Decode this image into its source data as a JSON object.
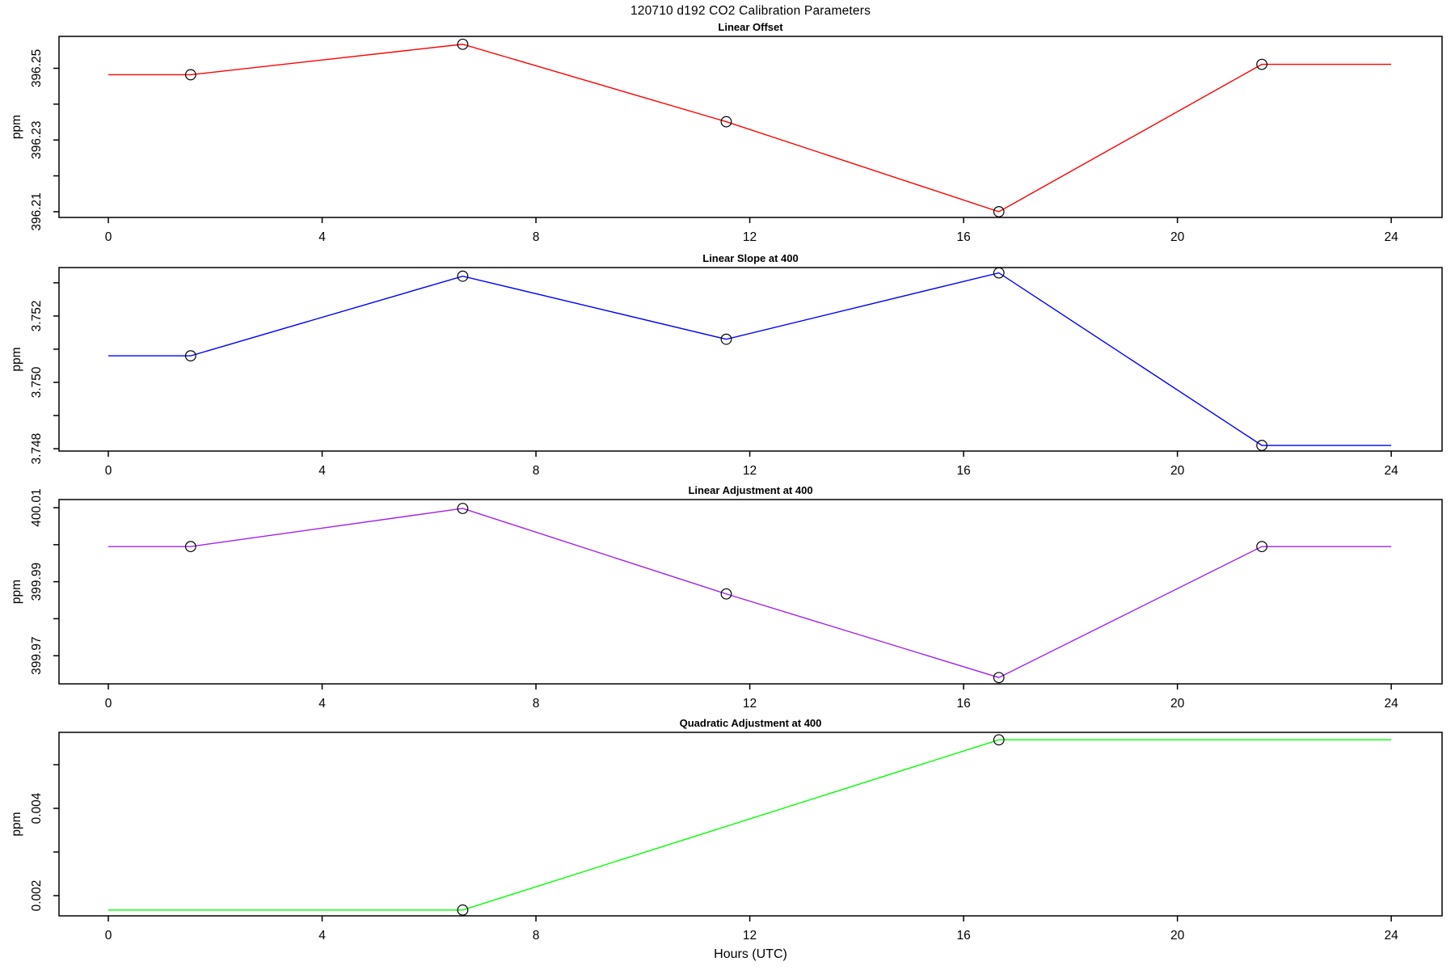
{
  "title": "120710   d192   CO2 Calibration Parameters",
  "x_axis": {
    "label": "Hours (UTC)",
    "ticks": [
      0,
      4,
      8,
      12,
      16,
      20,
      24
    ],
    "lim": [
      -0.96,
      24.96
    ]
  },
  "colors": {
    "linear_offset": "#ff0000",
    "linear_slope": "#0000ff",
    "linear_adjustment": "#a020f0",
    "quadratic_adjustment": "#00ff00",
    "axis": "#000000",
    "background": "#ffffff"
  },
  "chart_data": [
    {
      "type": "line",
      "title": "Linear Offset",
      "ylabel": "ppm",
      "color": "#ff0000",
      "ylim": [
        396.2084,
        396.2589
      ],
      "yticks": [
        {
          "v": 396.21,
          "label": "396.21"
        },
        {
          "v": 396.22,
          "label": ""
        },
        {
          "v": 396.23,
          "label": "396.23"
        },
        {
          "v": 396.24,
          "label": ""
        },
        {
          "v": 396.25,
          "label": "396.25"
        }
      ],
      "line": [
        [
          0,
          396.2482
        ],
        [
          1.54,
          396.2482
        ],
        [
          6.63,
          396.2567
        ],
        [
          11.56,
          396.2351
        ],
        [
          16.66,
          396.21
        ],
        [
          21.58,
          396.2511
        ],
        [
          24,
          396.2511
        ]
      ],
      "markers": [
        [
          1.54,
          396.2482
        ],
        [
          6.63,
          396.2567
        ],
        [
          11.56,
          396.2351
        ],
        [
          16.66,
          396.21
        ],
        [
          21.58,
          396.2511
        ]
      ]
    },
    {
      "type": "line",
      "title": "Linear Slope at 400",
      "ylabel": "ppm",
      "color": "#0000ff",
      "ylim": [
        3.74793,
        3.75346
      ],
      "yticks": [
        {
          "v": 3.748,
          "label": "3.748"
        },
        {
          "v": 3.749,
          "label": ""
        },
        {
          "v": 3.75,
          "label": "3.750"
        },
        {
          "v": 3.751,
          "label": ""
        },
        {
          "v": 3.752,
          "label": "3.752"
        },
        {
          "v": 3.753,
          "label": ""
        }
      ],
      "line": [
        [
          0,
          3.7508
        ],
        [
          1.54,
          3.7508
        ],
        [
          6.63,
          3.7532
        ],
        [
          11.56,
          3.7513
        ],
        [
          16.66,
          3.7533
        ],
        [
          21.58,
          3.7481
        ],
        [
          24,
          3.7481
        ]
      ],
      "markers": [
        [
          1.54,
          3.7508
        ],
        [
          6.63,
          3.7532
        ],
        [
          11.56,
          3.7513
        ],
        [
          16.66,
          3.7533
        ],
        [
          21.58,
          3.7481
        ]
      ]
    },
    {
      "type": "line",
      "title": "Linear Adjustment at 400",
      "ylabel": "ppm",
      "color": "#a020f0",
      "ylim": [
        399.9624,
        400.0122
      ],
      "yticks": [
        {
          "v": 399.97,
          "label": "399.97"
        },
        {
          "v": 399.98,
          "label": ""
        },
        {
          "v": 399.99,
          "label": "399.99"
        },
        {
          "v": 400.0,
          "label": ""
        },
        {
          "v": 400.01,
          "label": "400.01"
        }
      ],
      "line": [
        [
          0,
          399.9995
        ],
        [
          1.54,
          399.9995
        ],
        [
          6.63,
          400.0098
        ],
        [
          11.56,
          399.9867
        ],
        [
          16.66,
          399.9641
        ],
        [
          21.58,
          399.9995
        ],
        [
          24,
          399.9995
        ]
      ],
      "markers": [
        [
          1.54,
          399.9995
        ],
        [
          6.63,
          400.0098
        ],
        [
          11.56,
          399.9867
        ],
        [
          16.66,
          399.9641
        ],
        [
          21.58,
          399.9995
        ]
      ]
    },
    {
      "type": "line",
      "title": "Quadratic Adjustment at 400",
      "ylabel": "ppm",
      "color": "#00ff00",
      "ylim": [
        0.001537,
        0.005741
      ],
      "yticks": [
        {
          "v": 0.002,
          "label": "0.002"
        },
        {
          "v": 0.003,
          "label": ""
        },
        {
          "v": 0.004,
          "label": "0.004"
        },
        {
          "v": 0.005,
          "label": ""
        }
      ],
      "line": [
        [
          0,
          0.00167
        ],
        [
          6.63,
          0.00167
        ],
        [
          16.66,
          0.00557
        ],
        [
          24,
          0.00557
        ]
      ],
      "markers": [
        [
          6.63,
          0.00167
        ],
        [
          16.66,
          0.00557
        ]
      ]
    }
  ]
}
